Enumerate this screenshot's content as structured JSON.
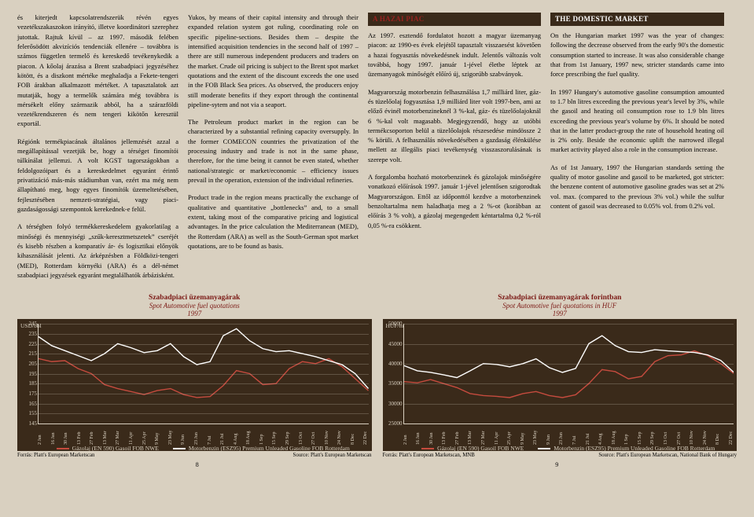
{
  "col1": {
    "p1": "és kiterjedt kapcsolatrendszerük révén egyes vezetékszakaszokon irányító, illetve koordinátori szerephez jutottak. Rajtuk kívül – az 1997. második felében felerősödött akvizíciós tendenciák ellenére – továbbra is számos független termelő és kereskedő tevékenykedik a piacon. A kőolaj árazása a Brent szabadpiaci jegyzéséhez kötött, és a diszkont mértéke meghaladja a Fekete-tengeri FOB árakban alkalmazott mértéket. A tapasztalatok azt mutatják, hogy a termelők számára még továbbra is mérsékelt előny származik abból, ha a szárazföldi vezetékrendszeren és nem tengeri kikötőn keresztül exportál.",
    "p2": "Régiónk termékpiacának általános jellemzését azzal a megállapítással vezetjük be, hogy a térséget finomítói túlkínálat jellemzi. A volt KGST tagországokban a feldolgozóipart és a kereskedelmet egyaránt érintő privatizáció más-más stádiumban van, ezért ma még nem állapítható meg, hogy egyes finomítók üzemeltetésében, fejlesztésében nemzeti-stratégiai, vagy piaci-gazdaságossági szempontok kerekednek-e felül.",
    "p3": "A térségben folyó termékkereskedelem gyakorlatilag a minőségi és mennyiségi „szűk-keresztmetszetek” cseréjét és kisebb részben a komparatív ár- és logisztikai előnyök kihasználását jelenti. Az árképzésben a Földközi-tengeri (MED), Rotterdam környéki (ARA) és a dél-német szabadpiaci jegyzések egyaránt megtalálhatók árbázisként."
  },
  "col2": {
    "p1": "Yukos, by means of their capital intensity and through their expanded relation system got ruling, coordinating role on specific pipeline-sections. Besides them – despite the intensified acquisition tendencies in the second half of 1997 – there are still numerous independent producers and traders on the market. Crude oil pricing is subject to the Brent spot market quotations and the extent of the discount exceeds the one used in the FOB Black Sea prices. As observed, the producers enjoy still moderate benefits if they export through the continental pipeline-sytem and not via a seaport.",
    "p2": "The Petroleum product market in the region can be characterized by a substantial refining capacity oversupply. In the former COMECON countries the privatization of the processing industry and trade is not in the same phase, therefore, for the time being it cannot be even stated, whether national/strategic or market/economic – efficiency issues prevail in the operation, extension of the individual refineries.",
    "p3": "Product trade in the region means practically the exchange of qualitative and quantitative „bottlenecks” and, to a small extent, taking most of the comparative pricing and logistical advantages. In the price calculation the Mediterranean (MED), the Rotterdam (ARA) as well as the South-German spot market quotations, are to be found as basis."
  },
  "head_hu": "A HAZAI PIAC",
  "head_en": "THE DOMESTIC MARKET",
  "col3": {
    "p1": "Az 1997. esztendő fordulatot hozott a magyar üzemanyag piacon: az 1990-es évek elejétől tapasztalt visszaesést követően a hazai fogyasztás növekedésnek indult. Jelentős változás volt továbbá, hogy 1997. január 1-jével életbe léptek az üzemanyagok minőségét előíró új, szigorúbb szabványok.",
    "p2": "Magyarország motorbenzin felhasználása 1,7 milliárd liter, gáz- és tüzelőolaj fogyasztása 1,9 milliárd liter volt 1997-ben, ami az előző évinél motorbenzineknél 3 %-kal, gáz- és tüzelőolajoknál 6 %-kal volt magasabb. Megjegyzendő, hogy az utóbbi termékcsoporton belül a tüzelőolajok részesedése mindössze 2 % körüli. A felhasználás növekedésében a gazdaság élénkülése mellett az illegális piaci tevékenység visszaszorulásának is szerepe volt.",
    "p3": "A forgalomba hozható motorbenzinek és gázolajok minőségére vonatkozó előírások 1997. január 1-jével jelentősen szigorodtak Magyarországon. Ettől az időponttól kezdve a motorbenzinek benzoltartalma nem haladhatja meg a 2 %-ot (korábban az előírás 3 % volt), a gázolaj megengedett kéntartalma 0,2 %-ról 0,05 %-ra csökkent."
  },
  "col4": {
    "p1": "On the Hungarian market 1997 was the year of changes: following the decrease observed from the early 90's the domestic consumption started to increase. It was also considerable change that from 1st January, 1997 new, stricter standards came into force prescribing the fuel quality.",
    "p2": "In 1997 Hungary's automotive gasoline consumption amounted to 1.7 bln litres exceeding the previous year's level by 3%, while the gasoil and heating oil consumption rose to 1.9 bln litres exceeding the previous year's volume by 6%. It should be noted that in the latter product-group the rate of household heating oil is 2% only. Beside the economic uplift the narrowed illegal market activity played also a role in the consumption increase.",
    "p3": "As of 1st January, 1997 the Hungarian standards setting the quality of motor gasoline and gasoil to be marketed, got stricter: the benzene content of automotive gasoline grades was set at 2% vol. max. (compared to the previous 3% vol.) while the sulfur content of gasoil was decreased to 0.05% vol. from 0.2% vol."
  },
  "chart_left": {
    "title_hu": "Szabadpiaci üzemanyagárak",
    "title_en": "Spot Automotive fuel quotations",
    "year": "1997",
    "y_label": "USD/bbl",
    "y_ticks": [
      "245",
      "235",
      "225",
      "215",
      "205",
      "195",
      "185",
      "175",
      "165",
      "155",
      "145"
    ],
    "y_min": 145,
    "y_max": 245,
    "legend1_hu": "Gázolaj (EN 590) Gasoil FOB NWE",
    "legend2_hu": "Motorbenzin (ESZ95) Premium Unleaded Gasoline FOB Rotterdam",
    "src_hu": "Forrás: Platt's European Marketscan",
    "src_en": "Source: Platt's European Marketscan",
    "color_gasoil": "#c54b3e",
    "color_gasoline": "#ffffff",
    "x_ticks": [
      "2 Jan",
      "16 Jan",
      "30 Jan",
      "13 Feb",
      "27 Feb",
      "13 Mar",
      "27 Mar",
      "11 Apr",
      "25 Apr",
      "9 May",
      "23 May",
      "9 Jun",
      "23 Jun",
      "7 Jul",
      "21 Jul",
      "4 Aug",
      "18 Aug",
      "1 Sep",
      "15 Sep",
      "29 Sep",
      "13 Oct",
      "27 Oct",
      "10 Nov",
      "24 Nov",
      "8 Dec",
      "22 Dec"
    ],
    "series_gasoil": [
      210,
      207,
      208,
      200,
      195,
      184,
      180,
      177,
      174,
      178,
      180,
      174,
      171,
      172,
      183,
      198,
      195,
      184,
      185,
      200,
      207,
      205,
      210,
      202,
      190,
      178
    ],
    "series_gasoline": [
      232,
      223,
      218,
      213,
      208,
      215,
      225,
      221,
      216,
      218,
      225,
      212,
      204,
      207,
      233,
      240,
      228,
      220,
      217,
      218,
      215,
      212,
      208,
      204,
      195,
      180
    ]
  },
  "chart_right": {
    "title_hu": "Szabadpiaci üzemanyagárak forintban",
    "title_en": "Spot Automotive fuel quotations in HUF",
    "year": "1997",
    "y_label": "HUF/to",
    "y_ticks": [
      "50000",
      "45000",
      "40000",
      "35000",
      "30000",
      "25000"
    ],
    "y_min": 25000,
    "y_max": 50000,
    "legend1_hu": "Gázolaj (EN 590) Gasoil FOB NWE",
    "legend2_hu": "Motorbenzin (ESZ95) Premium Unleaded Gasoline FOB Rotterdam",
    "src_hu": "Forrás: Platt's European Marketscan, MNB",
    "src_en": "Source: Platt's European Marketscan, National Bank of Hungary",
    "color_gasoil": "#c54b3e",
    "color_gasoline": "#ffffff",
    "x_ticks": [
      "2 Jan",
      "16 Jan",
      "30 Jan",
      "13 Feb",
      "27 Feb",
      "13 Mar",
      "27 Mar",
      "11 Apr",
      "25 Apr",
      "9 May",
      "23 May",
      "9 Jun",
      "23 Jun",
      "7 Jul",
      "21 Jul",
      "4 Aug",
      "18 Aug",
      "1 Sep",
      "15 Sep",
      "29 Sep",
      "13 Oct",
      "27 Oct",
      "10 Nov",
      "24 Nov",
      "8 Dec",
      "22 Dec"
    ],
    "series_gasoil": [
      35500,
      35200,
      36000,
      35000,
      34000,
      32500,
      32000,
      31800,
      31500,
      32500,
      33000,
      32000,
      31500,
      32200,
      35000,
      38500,
      38000,
      36200,
      36800,
      40500,
      42000,
      42200,
      43200,
      42000,
      40000,
      37500
    ],
    "series_gasoline": [
      39500,
      38200,
      37800,
      37200,
      36500,
      38200,
      40000,
      39800,
      39200,
      40000,
      41200,
      39000,
      37800,
      38800,
      45000,
      47000,
      44500,
      43000,
      42800,
      43500,
      43200,
      43000,
      42800,
      42200,
      40800,
      37800
    ]
  },
  "page_left": "8",
  "page_right": "9"
}
